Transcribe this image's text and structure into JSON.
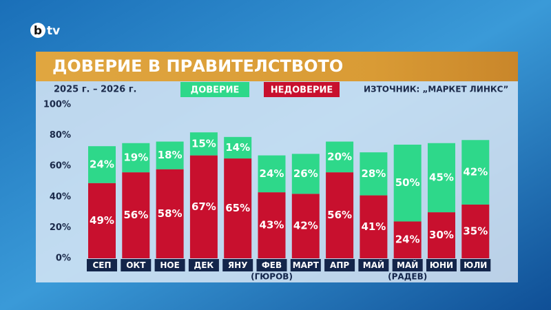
{
  "logo": {
    "mark": "b",
    "text": "tv"
  },
  "chart_data": {
    "type": "stacked_bar",
    "title": "ДОВЕРИЕ В ПРАВИТЕЛСТВОТО",
    "subtitle": "2025 г. – 2026 г.",
    "source": "ИЗТОЧНИК: „МАРКЕТ ЛИНКС”",
    "categories": [
      "СЕП",
      "ОКТ",
      "НОЕ",
      "ДЕК",
      "ЯНУ",
      "ФЕВ",
      "МАРТ",
      "АПР",
      "МАЙ",
      "МАЙ",
      "ЮНИ",
      "ЮЛИ"
    ],
    "category_notes": [
      null,
      null,
      null,
      null,
      null,
      "(ГЮРОВ)",
      null,
      null,
      null,
      "(РАДЕВ)",
      null,
      null
    ],
    "series": [
      {
        "name": "ДОВЕРИЕ",
        "color": "#2ed88a",
        "values": [
          24,
          19,
          18,
          15,
          14,
          24,
          26,
          20,
          28,
          50,
          45,
          42
        ],
        "value_labels": [
          "24%",
          "19%",
          "18%",
          "15%",
          "14%",
          "24%",
          "26%",
          "20%",
          "28%",
          "50%",
          "45%",
          "42%"
        ]
      },
      {
        "name": "НЕДОВЕРИЕ",
        "color": "#c8102e",
        "values": [
          49,
          56,
          58,
          67,
          65,
          43,
          42,
          56,
          41,
          24,
          30,
          35
        ],
        "value_labels": [
          "49%",
          "56%",
          "58%",
          "67%",
          "65%",
          "43%",
          "42%",
          "56%",
          "41%",
          "24%",
          "30%",
          "35%"
        ]
      }
    ],
    "ylim": [
      0,
      100
    ],
    "yticks": [
      {
        "value": 0,
        "label": "0%"
      },
      {
        "value": 20,
        "label": "20%"
      },
      {
        "value": 40,
        "label": "40%"
      },
      {
        "value": 60,
        "label": "60%"
      },
      {
        "value": 80,
        "label": "80%"
      },
      {
        "value": 100,
        "label": "100%"
      }
    ]
  }
}
